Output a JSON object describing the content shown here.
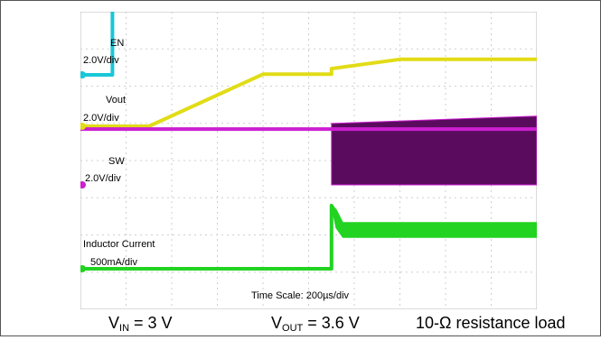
{
  "chart_data": {
    "type": "line",
    "instrument": "oscilloscope",
    "time_scale_label": "Time Scale: 200µs/div",
    "x_unit": "µs",
    "x_range": [
      0,
      2000
    ],
    "grid": true,
    "channels": [
      {
        "name": "EN",
        "scale": "2.0V/div",
        "color": "#19c7d8",
        "kind": "line",
        "x": [
          0,
          140,
          140,
          2000
        ],
        "y": [
          0,
          0,
          3.6,
          3.6
        ]
      },
      {
        "name": "Vout",
        "scale": "2.0V/div",
        "color": "#e1dc16",
        "kind": "line",
        "x": [
          0,
          300,
          800,
          1100,
          1100,
          1400,
          2000
        ],
        "y": [
          0,
          0,
          2.8,
          2.8,
          3.1,
          3.6,
          3.6
        ]
      },
      {
        "name": "SW",
        "scale": "2.0V/div",
        "color": "#cc1fd1",
        "kind": "switching",
        "x": [
          0,
          1100,
          1100,
          2000
        ],
        "y": [
          3.0,
          3.0,
          3.0,
          3.0
        ],
        "band_high": [
          3.0,
          3.0,
          3.3,
          3.7
        ],
        "band_low": [
          3.0,
          3.0,
          0,
          0
        ]
      },
      {
        "name": "Inductor Current",
        "scale": "500mA/div",
        "color": "#22d322",
        "kind": "switching",
        "x": [
          0,
          1100,
          1100,
          1120,
          1150,
          2000
        ],
        "y": [
          0,
          0,
          0.85,
          0.75,
          0.55,
          0.55
        ],
        "band_high": [
          0,
          0,
          0.85,
          0.8,
          0.62,
          0.62
        ],
        "band_low": [
          0,
          0,
          0.85,
          0.55,
          0.42,
          0.42
        ]
      }
    ]
  },
  "labels": {
    "en_name": "EN",
    "en_scale": "2.0V/div",
    "vout_name": "Vout",
    "vout_scale": "2.0V/div",
    "sw_name": "SW",
    "sw_scale": "2.0V/div",
    "il_name": "Inductor Current",
    "il_scale": "500mA/div",
    "time_scale": "Time Scale: 200µs/div"
  },
  "caption": {
    "vin_main": "V",
    "vin_sub": "IN",
    "vin_value": " = 3 V",
    "vout_main": "V",
    "vout_sub": "OUT",
    "vout_value": " = 3.6 V",
    "load": "10-Ω resistance load"
  }
}
